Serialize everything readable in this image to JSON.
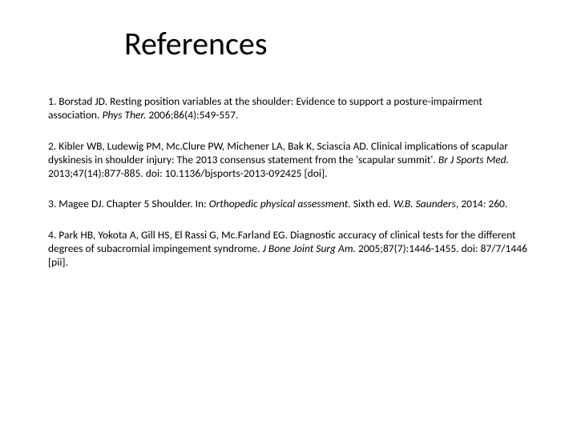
{
  "title": "References",
  "refs": {
    "r1": {
      "lead": "1. Borstad JD. Resting position variables at the shoulder: Evidence to support a posture-impairment association. ",
      "journal": "Phys Ther. ",
      "tail": "2006;86(4):549-557."
    },
    "r2": {
      "lead": "2. Kibler WB, Ludewig PM, Mc.Clure PW, Michener LA, Bak K, Sciascia AD. Clinical implications of scapular dyskinesis in shoulder injury: The 2013 consensus statement from the 'scapular summit'. ",
      "journal": "Br J Sports Med. ",
      "tail": "2013;47(14):877-885. doi: 10.1136/bjsports-2013-092425 [doi]."
    },
    "r3": {
      "lead": "3. Magee DJ. Chapter 5 Shoulder. In: ",
      "journal": "Orthopedic physical assessment. ",
      "mid": "Sixth ed. ",
      "pub": "W.B. Saunders",
      "tail": ", 2014: 260."
    },
    "r4": {
      "lead": "4. Park HB, Yokota A, Gill HS, El Rassi G, Mc.Farland EG. Diagnostic accuracy of clinical tests for the different degrees of subacromial impingement syndrome. ",
      "journal": "J Bone Joint Surg Am. ",
      "tail": "2005;87(7):1446-1455. doi: 87/7/1446 [pii]."
    }
  },
  "style": {
    "background": "#ffffff",
    "text_color": "#000000",
    "title_fontsize": 40,
    "body_fontsize": 13.5,
    "font_family": "Calibri, Arial, sans-serif"
  }
}
